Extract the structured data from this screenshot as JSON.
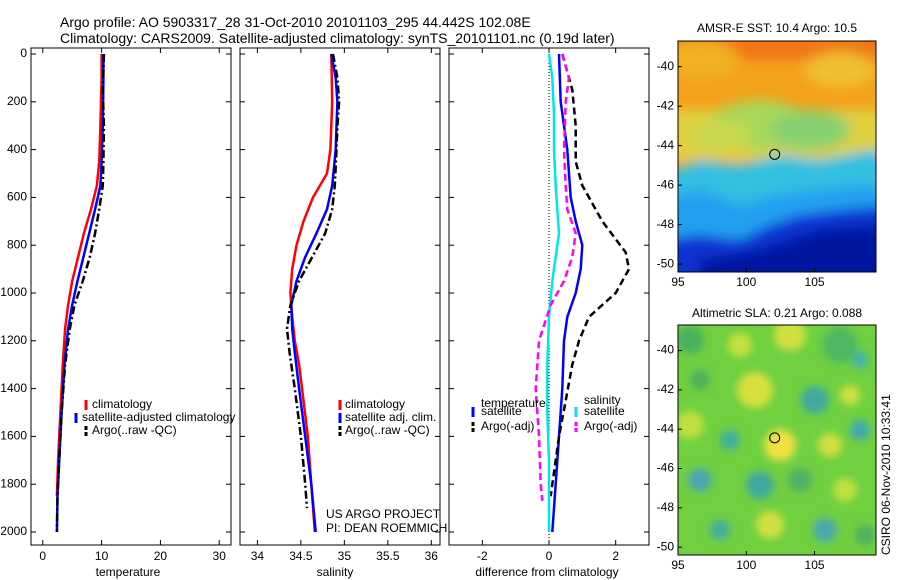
{
  "header": {
    "line1": "Argo profile: AO 5903317_28 31-Oct-2010 20101103_295 44.442S 102.08E",
    "line2": "Climatology: CARS2009. Satellite-adjusted climatology: synTS_20101101.nc (0.19d later)"
  },
  "colors": {
    "climatology": "#ff0000",
    "satellite": "#0000ff",
    "argo": "#000000",
    "sat_sal": "#00e5e5",
    "argo_sal": "#ff00ff"
  },
  "chart_data": [
    {
      "type": "line",
      "id": "temperature",
      "xlabel": "temperature",
      "ylabel": "",
      "xlim": [
        -2,
        32
      ],
      "ylim": [
        2050,
        0
      ],
      "xticks": [
        0,
        10,
        20,
        30
      ],
      "yticks": [
        0,
        200,
        400,
        600,
        800,
        1000,
        1200,
        1400,
        1600,
        1800,
        2000
      ],
      "legend": [
        "climatology",
        "satellite-adjusted climatology",
        "Argo(..raw -QC)"
      ],
      "legend_placement": "lower-left",
      "series": [
        {
          "name": "climatology",
          "color": "#ff0000",
          "dash": "solid",
          "points": [
            [
              10.0,
              0
            ],
            [
              10.0,
              100
            ],
            [
              9.8,
              300
            ],
            [
              9.6,
              450
            ],
            [
              9.2,
              550
            ],
            [
              8.2,
              650
            ],
            [
              7.0,
              750
            ],
            [
              6.0,
              850
            ],
            [
              5.0,
              950
            ],
            [
              4.3,
              1050
            ],
            [
              3.8,
              1150
            ],
            [
              3.4,
              1300
            ],
            [
              3.0,
              1500
            ],
            [
              2.6,
              1700
            ],
            [
              2.4,
              1850
            ]
          ]
        },
        {
          "name": "satellite-adjusted climatology",
          "color": "#0000ff",
          "dash": "solid",
          "points": [
            [
              10.3,
              0
            ],
            [
              10.3,
              100
            ],
            [
              10.2,
              300
            ],
            [
              10.0,
              450
            ],
            [
              9.8,
              550
            ],
            [
              8.9,
              650
            ],
            [
              7.9,
              750
            ],
            [
              6.9,
              850
            ],
            [
              5.9,
              950
            ],
            [
              5.0,
              1050
            ],
            [
              4.3,
              1150
            ],
            [
              3.7,
              1300
            ],
            [
              3.2,
              1500
            ],
            [
              2.8,
              1700
            ],
            [
              2.5,
              1850
            ],
            [
              2.4,
              2000
            ]
          ]
        },
        {
          "name": "Argo(..raw -QC)",
          "color": "#000000",
          "dash": "dashdot",
          "points": [
            [
              10.4,
              0
            ],
            [
              10.2,
              150
            ],
            [
              10.4,
              300
            ],
            [
              10.3,
              450
            ],
            [
              10.2,
              550
            ],
            [
              9.6,
              650
            ],
            [
              8.9,
              750
            ],
            [
              8.0,
              850
            ],
            [
              6.8,
              950
            ],
            [
              5.4,
              1050
            ],
            [
              4.6,
              1150
            ],
            [
              3.8,
              1300
            ],
            [
              3.2,
              1500
            ],
            [
              2.8,
              1700
            ],
            [
              2.5,
              1850
            ],
            [
              2.4,
              2000
            ]
          ]
        }
      ]
    },
    {
      "type": "line",
      "id": "salinity",
      "xlabel": "salinity",
      "xlim": [
        33.8,
        36.1
      ],
      "ylim": [
        2050,
        0
      ],
      "xticks": [
        34,
        34.5,
        35,
        35.5,
        36
      ],
      "legend": [
        "climatology",
        "satellite adj. clim.",
        "Argo(..raw -QC)"
      ],
      "legend_placement": "lower-right",
      "series": [
        {
          "name": "climatology",
          "color": "#ff0000",
          "dash": "solid",
          "points": [
            [
              34.85,
              0
            ],
            [
              34.86,
              200
            ],
            [
              34.84,
              400
            ],
            [
              34.8,
              500
            ],
            [
              34.64,
              600
            ],
            [
              34.53,
              700
            ],
            [
              34.45,
              800
            ],
            [
              34.4,
              900
            ],
            [
              34.38,
              1000
            ],
            [
              34.4,
              1100
            ],
            [
              34.43,
              1200
            ],
            [
              34.48,
              1300
            ],
            [
              34.53,
              1450
            ],
            [
              34.58,
              1600
            ],
            [
              34.62,
              1800
            ],
            [
              34.66,
              2000
            ]
          ]
        },
        {
          "name": "satellite adj. clim.",
          "color": "#0000ff",
          "dash": "solid",
          "points": [
            [
              34.85,
              0
            ],
            [
              34.9,
              100
            ],
            [
              34.92,
              200
            ],
            [
              34.91,
              300
            ],
            [
              34.9,
              400
            ],
            [
              34.86,
              550
            ],
            [
              34.8,
              650
            ],
            [
              34.68,
              750
            ],
            [
              34.55,
              850
            ],
            [
              34.45,
              950
            ],
            [
              34.39,
              1050
            ],
            [
              34.4,
              1150
            ],
            [
              34.43,
              1250
            ],
            [
              34.48,
              1400
            ],
            [
              34.55,
              1600
            ],
            [
              34.62,
              1800
            ],
            [
              34.67,
              2000
            ]
          ]
        },
        {
          "name": "Argo(..raw -QC)",
          "color": "#000000",
          "dash": "dashdot",
          "points": [
            [
              34.87,
              0
            ],
            [
              34.92,
              100
            ],
            [
              34.94,
              200
            ],
            [
              34.92,
              300
            ],
            [
              34.91,
              400
            ],
            [
              34.89,
              550
            ],
            [
              34.86,
              650
            ],
            [
              34.78,
              750
            ],
            [
              34.63,
              850
            ],
            [
              34.48,
              950
            ],
            [
              34.38,
              1050
            ],
            [
              34.34,
              1150
            ],
            [
              34.37,
              1250
            ],
            [
              34.43,
              1400
            ],
            [
              34.5,
              1600
            ],
            [
              34.55,
              1800
            ],
            [
              34.57,
              1900
            ]
          ]
        }
      ],
      "annotation_line1": "US ARGO PROJECT",
      "annotation_line2": "PI: DEAN ROEMMICH"
    },
    {
      "type": "line",
      "id": "difference",
      "xlabel": "difference from climatology",
      "xlim": [
        -3,
        3
      ],
      "ylim": [
        2050,
        0
      ],
      "xticks": [
        -2,
        0,
        2
      ],
      "zero_line": true,
      "legend_temperature_title": "temperature",
      "legend_salinity_title": "salinity",
      "legend_temperature": [
        "satellite",
        "Argo(-adj)"
      ],
      "legend_salinity": [
        "satellite",
        "Argo(-adj)"
      ],
      "legend_placement": "lower-center",
      "series": [
        {
          "name": "temperature satellite",
          "color": "#0000ff",
          "dash": "solid",
          "points": [
            [
              0.3,
              0
            ],
            [
              0.35,
              200
            ],
            [
              0.55,
              400
            ],
            [
              0.6,
              500
            ],
            [
              0.65,
              600
            ],
            [
              0.8,
              700
            ],
            [
              1.0,
              800
            ],
            [
              0.95,
              900
            ],
            [
              0.8,
              1000
            ],
            [
              0.55,
              1100
            ],
            [
              0.45,
              1200
            ],
            [
              0.4,
              1400
            ],
            [
              0.3,
              1600
            ],
            [
              0.2,
              1800
            ],
            [
              0.1,
              2000
            ]
          ]
        },
        {
          "name": "temperature Argo(-adj)",
          "color": "#000000",
          "dash": "dashed",
          "points": [
            [
              0.4,
              0
            ],
            [
              0.7,
              150
            ],
            [
              0.8,
              300
            ],
            [
              0.8,
              450
            ],
            [
              1.0,
              550
            ],
            [
              1.6,
              700
            ],
            [
              2.3,
              830
            ],
            [
              2.4,
              900
            ],
            [
              2.0,
              1000
            ],
            [
              1.2,
              1100
            ],
            [
              0.9,
              1200
            ],
            [
              0.7,
              1300
            ],
            [
              0.5,
              1450
            ],
            [
              0.3,
              1600
            ],
            [
              0.15,
              1750
            ],
            [
              0.05,
              1850
            ]
          ]
        },
        {
          "name": "salinity satellite",
          "color": "#00e5e5",
          "dash": "solid",
          "points": [
            [
              0.0,
              0
            ],
            [
              0.1,
              100
            ],
            [
              0.15,
              250
            ],
            [
              0.15,
              400
            ],
            [
              0.2,
              550
            ],
            [
              0.25,
              650
            ],
            [
              0.3,
              750
            ],
            [
              0.2,
              850
            ],
            [
              0.1,
              950
            ],
            [
              0.0,
              1100
            ],
            [
              -0.05,
              1300
            ],
            [
              -0.05,
              1500
            ],
            [
              0.0,
              1700
            ],
            [
              0.0,
              2000
            ]
          ]
        },
        {
          "name": "salinity Argo(-adj)",
          "color": "#ff00ff",
          "dash": "dashed",
          "points": [
            [
              0.4,
              0
            ],
            [
              0.6,
              100
            ],
            [
              0.5,
              200
            ],
            [
              0.45,
              400
            ],
            [
              0.5,
              550
            ],
            [
              0.55,
              650
            ],
            [
              0.8,
              750
            ],
            [
              0.7,
              850
            ],
            [
              0.45,
              950
            ],
            [
              0.05,
              1050
            ],
            [
              -0.3,
              1200
            ],
            [
              -0.4,
              1400
            ],
            [
              -0.3,
              1600
            ],
            [
              -0.25,
              1800
            ],
            [
              -0.2,
              1870
            ]
          ]
        }
      ]
    },
    {
      "type": "heatmap",
      "id": "sst-map",
      "title": "AMSR-E SST: 10.4 Argo: 10.5",
      "xlim": [
        95,
        109.5
      ],
      "ylim": [
        -50.4,
        -38.7
      ],
      "xticks": [
        95,
        100,
        105
      ],
      "yticks": [
        -40,
        -42,
        -44,
        -46,
        -48,
        -50
      ],
      "marker": {
        "lon": 102.08,
        "lat": -44.442
      }
    },
    {
      "type": "heatmap",
      "id": "sla-map",
      "title": "Altimetric SLA: 0.21 Argo: 0.088",
      "xlim": [
        95,
        109.5
      ],
      "ylim": [
        -50.4,
        -38.7
      ],
      "xticks": [
        95,
        100,
        105
      ],
      "yticks": [
        -40,
        -42,
        -44,
        -46,
        -48,
        -50
      ],
      "marker": {
        "lon": 102.08,
        "lat": -44.442
      }
    }
  ],
  "side_caption": "CSIRO 06-Nov-2010 10:33:41"
}
